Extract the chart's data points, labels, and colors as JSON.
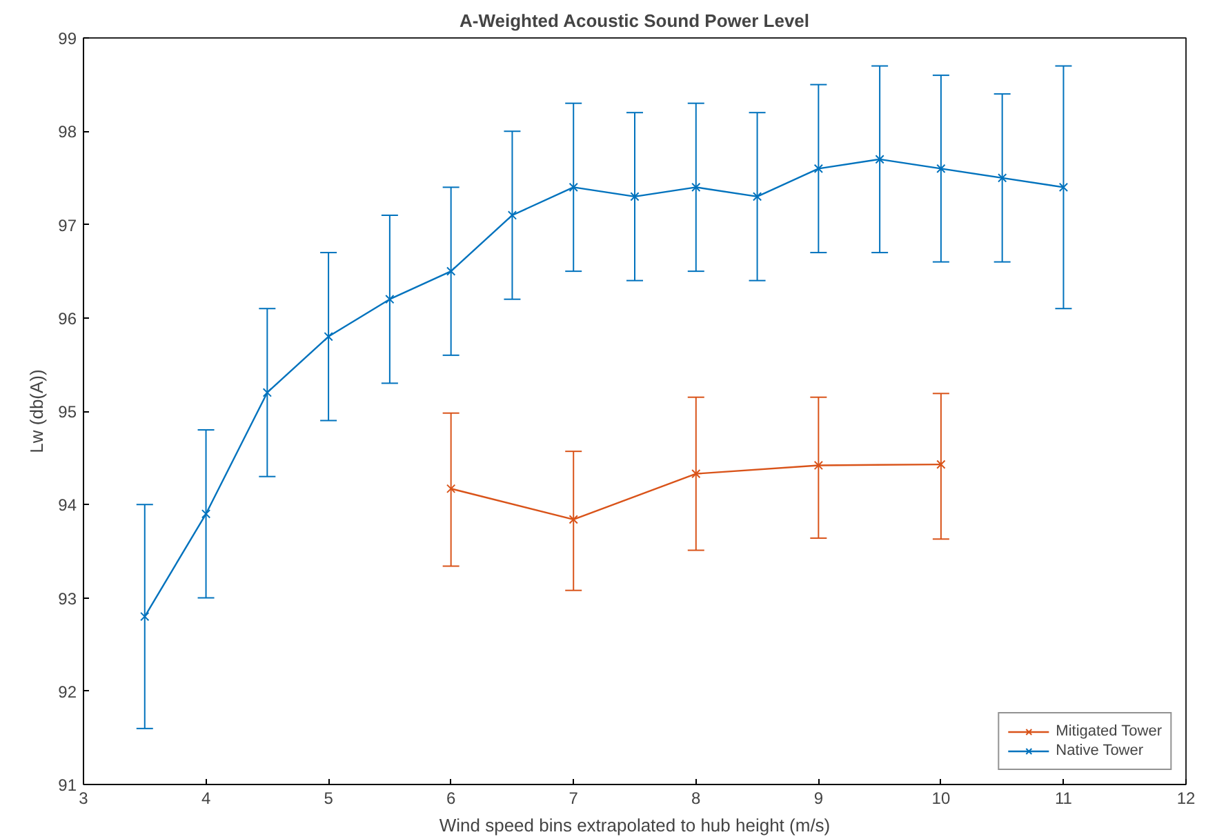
{
  "chart_data": {
    "type": "line",
    "title": "A-Weighted Acoustic Sound Power Level",
    "xlabel": "Wind speed bins extrapolated to hub height (m/s)",
    "ylabel": "Lw (db(A))",
    "xlim": [
      3,
      12
    ],
    "xticks": [
      3,
      4,
      5,
      6,
      7,
      8,
      9,
      10,
      11,
      12
    ],
    "ylim": [
      91,
      99
    ],
    "yticks": [
      91,
      92,
      93,
      94,
      95,
      96,
      97,
      98,
      99
    ],
    "grid": false,
    "legend": "bottom right",
    "marker": "cross",
    "line_style": "solid",
    "series": [
      {
        "name": "Mitigated Tower",
        "color": "#d95319",
        "x": [
          6,
          7,
          8,
          9,
          10
        ],
        "values": [
          94.17,
          93.84,
          94.33,
          94.42,
          94.43
        ],
        "errors": [
          [
            93.34,
            94.98
          ],
          [
            93.08,
            94.57
          ],
          [
            93.51,
            95.15
          ],
          [
            93.64,
            95.15
          ],
          [
            93.63,
            95.19
          ]
        ]
      },
      {
        "name": "Native Tower",
        "color": "#0072bd",
        "x": [
          3.5,
          4,
          4.5,
          5,
          5.5,
          6,
          6.5,
          7,
          7.5,
          8,
          8.5,
          9,
          9.5,
          10,
          10.5,
          11
        ],
        "values": [
          92.8,
          93.9,
          95.2,
          95.8,
          96.2,
          96.5,
          97.1,
          97.4,
          97.3,
          97.4,
          97.3,
          97.6,
          97.7,
          97.6,
          97.5,
          97.4
        ],
        "errors": [
          [
            91.6,
            94.0
          ],
          [
            93.0,
            94.8
          ],
          [
            94.3,
            96.1
          ],
          [
            94.9,
            96.7
          ],
          [
            95.3,
            97.1
          ],
          [
            95.6,
            97.4
          ],
          [
            96.2,
            98.0
          ],
          [
            96.5,
            98.3
          ],
          [
            96.4,
            98.2
          ],
          [
            96.5,
            98.3
          ],
          [
            96.4,
            98.2
          ],
          [
            96.7,
            98.5
          ],
          [
            96.7,
            98.7
          ],
          [
            96.6,
            98.6
          ],
          [
            96.6,
            98.4
          ],
          [
            96.1,
            98.7
          ]
        ]
      }
    ]
  }
}
